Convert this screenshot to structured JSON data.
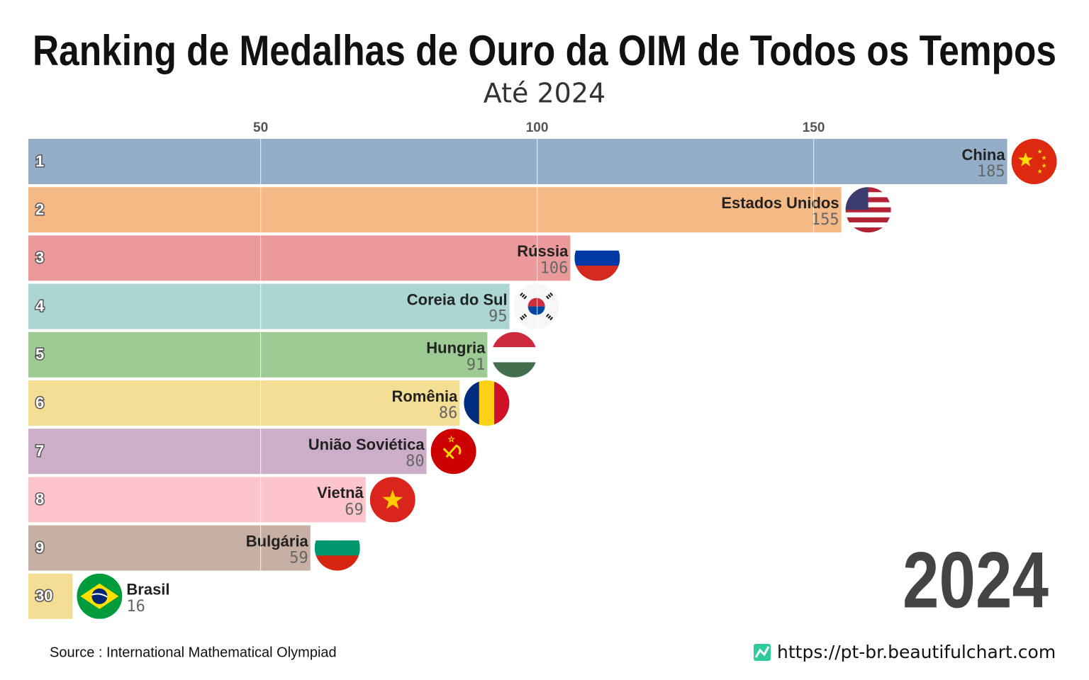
{
  "chart_data": {
    "type": "bar",
    "orientation": "horizontal",
    "title": "Ranking de Medalhas de Ouro da OIM de Todos os Tempos",
    "subtitle": "Até 2024",
    "categories": [
      "China",
      "Estados Unidos",
      "Rússia",
      "Coreia do Sul",
      "Hungria",
      "Romênia",
      "União Soviética",
      "Vietnã",
      "Bulgária",
      "Brasil"
    ],
    "ranks": [
      1,
      2,
      3,
      4,
      5,
      6,
      7,
      8,
      9,
      30
    ],
    "values": [
      185,
      155,
      106,
      95,
      91,
      86,
      80,
      69,
      59,
      16
    ],
    "colors": [
      "#94aec9",
      "#f5b985",
      "#eb9a9b",
      "#acd6d3",
      "#9ccb94",
      "#f3de93",
      "#cdaec9",
      "#fdc4cc",
      "#c7b0a3",
      "#f3de93"
    ],
    "xlim": [
      8,
      190
    ],
    "xticks": [
      50,
      100,
      150
    ],
    "grid": true,
    "year": "2024",
    "source": "Source : International Mathematical Olympiad",
    "url": "https://pt-br.beautifulchart.com"
  }
}
